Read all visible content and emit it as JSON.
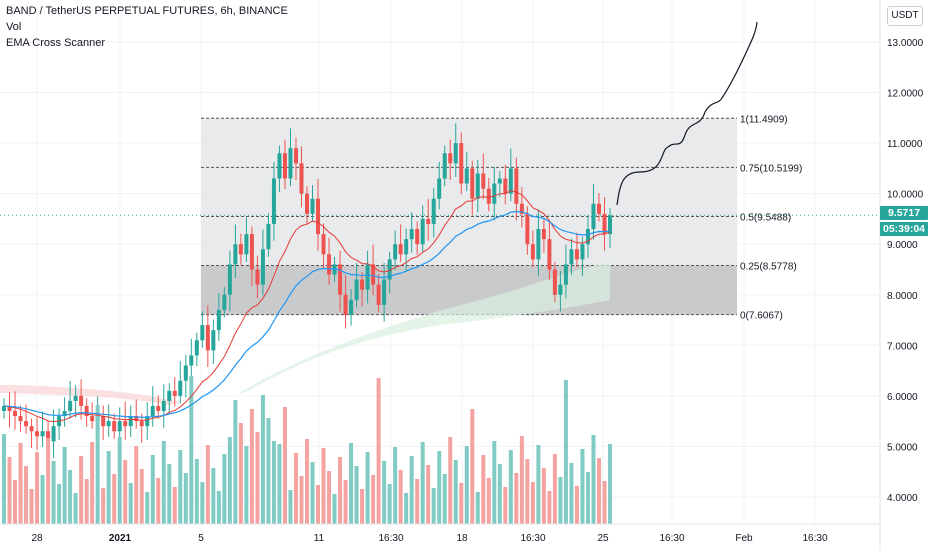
{
  "header": {
    "symbol_line": "BAND / TetherUS PERPETUAL FUTURES, 6h, BINANCE",
    "indicator_1": "Vol",
    "indicator_2": "EMA Cross Scanner"
  },
  "price_axis": {
    "currency": "USDT",
    "ticks": [
      "13.0000",
      "12.0000",
      "11.0000",
      "10.0000",
      "9.0000",
      "8.0000",
      "7.0000",
      "6.0000",
      "5.0000",
      "4.0000"
    ]
  },
  "time_axis": {
    "labels": [
      "28",
      "2021",
      "5",
      "11",
      "16:30",
      "18",
      "16:30",
      "25",
      "16:30",
      "Feb",
      "16:30"
    ]
  },
  "price_tag": {
    "value": "9.5717",
    "countdown": "05:39:04"
  },
  "fib_levels": [
    {
      "label": "1(11.4909)",
      "price": 11.4909
    },
    {
      "label": "0.75(10.5199)",
      "price": 10.5199
    },
    {
      "label": "0.5(9.5488)",
      "price": 9.5488
    },
    {
      "label": "0.25(8.5778)",
      "price": 8.5778
    },
    {
      "label": "0(7.6067)",
      "price": 7.6067
    }
  ],
  "chart_data": {
    "type": "candlestick",
    "title": "BAND / TetherUS PERPETUAL FUTURES, 6h, BINANCE",
    "ylim": [
      3.4,
      13.6
    ],
    "last_price": 9.5717,
    "ohlc_close_approx": [
      5.8,
      5.7,
      5.6,
      5.5,
      5.4,
      5.3,
      5.2,
      5.3,
      5.1,
      5.4,
      5.6,
      5.7,
      5.9,
      6.0,
      5.8,
      5.6,
      5.5,
      5.6,
      5.4,
      5.5,
      5.3,
      5.5,
      5.4,
      5.6,
      5.5,
      5.4,
      5.6,
      5.8,
      5.7,
      5.9,
      6.1,
      6.0,
      6.3,
      6.6,
      6.8,
      7.1,
      7.4,
      6.9,
      7.3,
      7.7,
      8.0,
      8.6,
      9.0,
      8.8,
      9.2,
      8.5,
      8.2,
      8.9,
      9.4,
      10.3,
      10.8,
      10.3,
      10.9,
      10.6,
      10.0,
      9.6,
      9.9,
      9.2,
      8.8,
      8.4,
      8.6,
      8.0,
      7.6,
      7.9,
      8.3,
      8.1,
      8.6,
      8.2,
      7.8,
      8.3,
      8.7,
      9.0,
      8.8,
      9.1,
      9.3,
      9.0,
      9.5,
      9.4,
      9.9,
      10.3,
      10.8,
      10.6,
      11.0,
      10.2,
      10.5,
      9.9,
      10.4,
      10.1,
      9.8,
      10.2,
      10.3,
      10.0,
      10.5,
      9.8,
      9.6,
      9.0,
      8.7,
      9.3,
      9.1,
      8.5,
      8.0,
      8.2,
      8.6,
      8.9,
      8.7,
      9.0,
      9.3,
      9.8,
      9.6,
      9.2,
      9.57
    ],
    "volume_note": "volume bars shown below price",
    "projection": "hand-drawn upward path toward ~13.3"
  }
}
